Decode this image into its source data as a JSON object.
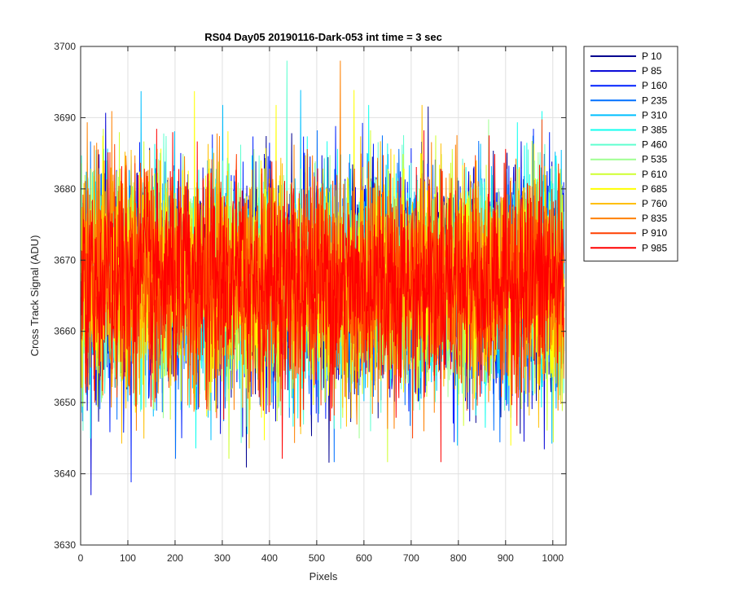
{
  "chart_data": {
    "type": "line",
    "title": "RS04 Day05 20190116-Dark-053 int time = 3 sec",
    "xlabel": "Pixels",
    "ylabel": "Cross Track Signal (ADU)",
    "xlim": [
      0,
      1028
    ],
    "ylim": [
      3630,
      3700
    ],
    "xticks": [
      0,
      100,
      200,
      300,
      400,
      500,
      600,
      700,
      800,
      900,
      1000
    ],
    "yticks": [
      3630,
      3640,
      3650,
      3660,
      3670,
      3680,
      3690,
      3700
    ],
    "grid": true,
    "legend_position": "outside-top-right",
    "noise_model": {
      "mean": 3667,
      "std": 7.5,
      "min": 3637,
      "max": 3698,
      "points_per_series": 1024
    },
    "series": [
      {
        "name": "P 10",
        "color": "#00008f"
      },
      {
        "name": "P 85",
        "color": "#0000d6"
      },
      {
        "name": "P 160",
        "color": "#0020ff"
      },
      {
        "name": "P 235",
        "color": "#0070ff"
      },
      {
        "name": "P 310",
        "color": "#00bfff"
      },
      {
        "name": "P 385",
        "color": "#10ffef"
      },
      {
        "name": "P 460",
        "color": "#60ffd0"
      },
      {
        "name": "P 535",
        "color": "#9fff90"
      },
      {
        "name": "P 610",
        "color": "#cfff30"
      },
      {
        "name": "P 685",
        "color": "#ffff00"
      },
      {
        "name": "P 760",
        "color": "#ffbf00"
      },
      {
        "name": "P 835",
        "color": "#ff8000"
      },
      {
        "name": "P 910",
        "color": "#ff4000"
      },
      {
        "name": "P 985",
        "color": "#ff0000"
      }
    ]
  }
}
